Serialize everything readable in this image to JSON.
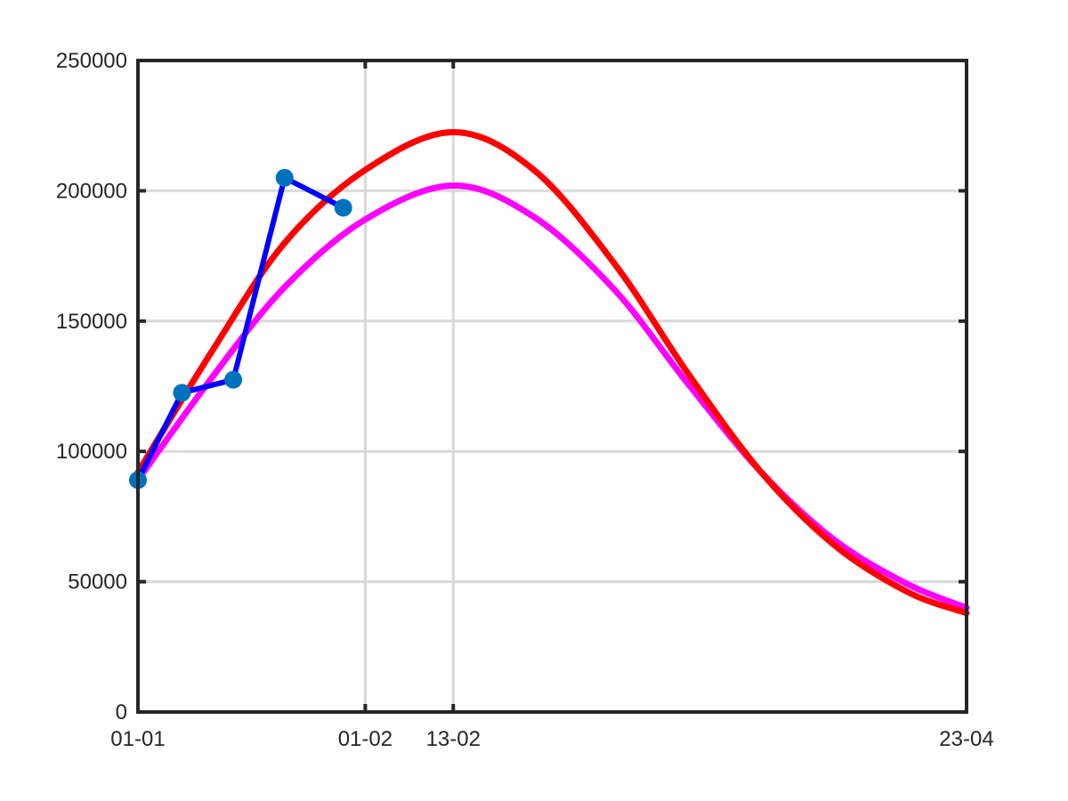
{
  "chart_data": {
    "type": "line",
    "title": "",
    "xlabel": "",
    "ylabel": "",
    "x_axis": {
      "type": "date",
      "range": [
        "01-01",
        "23-04"
      ],
      "tick_labels": [
        "01-01",
        "01-02",
        "13-02",
        "23-04"
      ]
    },
    "y_axis": {
      "range": [
        0,
        250000
      ],
      "ticks": [
        0,
        50000,
        100000,
        150000,
        200000,
        250000
      ],
      "tick_labels": [
        "0",
        "50000",
        "100000",
        "150000",
        "200000",
        "250000"
      ]
    },
    "grid": true,
    "legend": "none",
    "series": [
      {
        "color": "#0000ff",
        "marker_color": "#0072bd",
        "style": "line-with-markers",
        "points": [
          {
            "x": "01-01",
            "y": 89000
          },
          {
            "x": "07-01",
            "y": 122500
          },
          {
            "x": "14-01",
            "y": 127500
          },
          {
            "x": "21-01",
            "y": 205000
          },
          {
            "x": "29-01",
            "y": 193500
          }
        ]
      },
      {
        "color": "#ff00ff",
        "style": "smooth-line",
        "peak": {
          "x": "13-02",
          "y": 202000
        },
        "points": [
          {
            "x": "01-01",
            "y": 89000
          },
          {
            "x": "11-01",
            "y": 128000
          },
          {
            "x": "21-01",
            "y": 163000
          },
          {
            "x": "01-02",
            "y": 189000
          },
          {
            "x": "13-02",
            "y": 202000
          },
          {
            "x": "24-02",
            "y": 190000
          },
          {
            "x": "06-03",
            "y": 162000
          },
          {
            "x": "16-03",
            "y": 126000
          },
          {
            "x": "26-03",
            "y": 92000
          },
          {
            "x": "05-04",
            "y": 66000
          },
          {
            "x": "15-04",
            "y": 49000
          },
          {
            "x": "23-04",
            "y": 40000
          }
        ]
      },
      {
        "color": "#ff0000",
        "style": "smooth-line",
        "peak": {
          "x": "13-02",
          "y": 222500
        },
        "points": [
          {
            "x": "01-01",
            "y": 92000
          },
          {
            "x": "11-01",
            "y": 138000
          },
          {
            "x": "21-01",
            "y": 180000
          },
          {
            "x": "01-02",
            "y": 208000
          },
          {
            "x": "13-02",
            "y": 222500
          },
          {
            "x": "24-02",
            "y": 208000
          },
          {
            "x": "06-03",
            "y": 172000
          },
          {
            "x": "16-03",
            "y": 130000
          },
          {
            "x": "26-03",
            "y": 92000
          },
          {
            "x": "05-04",
            "y": 64000
          },
          {
            "x": "15-04",
            "y": 46000
          },
          {
            "x": "23-04",
            "y": 38000
          }
        ]
      }
    ]
  }
}
